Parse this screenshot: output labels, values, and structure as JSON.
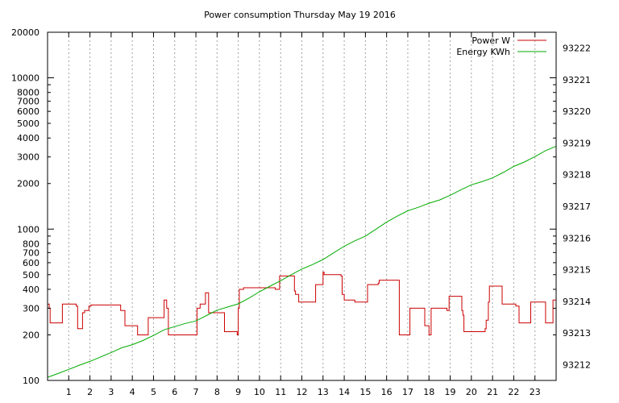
{
  "chart_data": {
    "type": "line",
    "title": "Power consumption Thursday May 19 2016",
    "xlabel": "",
    "ylabel": "",
    "y2label": "",
    "grid": true,
    "legend_position": "top-right",
    "x_ticks": [
      1,
      2,
      3,
      4,
      5,
      6,
      7,
      8,
      9,
      10,
      11,
      12,
      13,
      14,
      15,
      16,
      17,
      18,
      19,
      20,
      21,
      22,
      23
    ],
    "xlim": [
      0,
      24
    ],
    "y_scale": "log",
    "ylim": [
      100,
      20000
    ],
    "y_ticks": [
      {
        "value": 100,
        "label": "100"
      },
      {
        "value": 200,
        "label": "200"
      },
      {
        "value": 300,
        "label": "300"
      },
      {
        "value": 400,
        "label": "400"
      },
      {
        "value": 500,
        "label": "500"
      },
      {
        "value": 600,
        "label": "600"
      },
      {
        "value": 700,
        "label": "700"
      },
      {
        "value": 800,
        "label": "800"
      },
      {
        "value": 1000,
        "label": "1000"
      },
      {
        "value": 2000,
        "label": "2000"
      },
      {
        "value": 3000,
        "label": "3000"
      },
      {
        "value": 4000,
        "label": "4000"
      },
      {
        "value": 5000,
        "label": "5000"
      },
      {
        "value": 6000,
        "label": "6000"
      },
      {
        "value": 7000,
        "label": "7000"
      },
      {
        "value": 8000,
        "label": "8000"
      },
      {
        "value": 10000,
        "label": "10000"
      },
      {
        "value": 20000,
        "label": "20000"
      }
    ],
    "y2lim": [
      93211.5,
      93222.5
    ],
    "y2_ticks": [
      93212,
      93213,
      93214,
      93215,
      93216,
      93217,
      93218,
      93219,
      93220,
      93221,
      93222
    ],
    "series": [
      {
        "name": "Power W",
        "axis": "y",
        "color": "#cc0000",
        "step": true,
        "x": [
          0,
          0.08,
          0.12,
          0.65,
          0.7,
          1.35,
          1.42,
          1.65,
          1.75,
          1.95,
          2.05,
          3.35,
          3.45,
          3.65,
          3.75,
          4.25,
          4.4,
          4.75,
          4.85,
          5.5,
          5.55,
          5.62,
          5.7,
          6.35,
          6.9,
          7.05,
          7.15,
          7.2,
          7.45,
          7.6,
          8.3,
          8.35,
          8.9,
          8.95,
          9.0,
          9.05,
          9.25,
          9.85,
          10.3,
          10.75,
          10.95,
          11.55,
          11.65,
          11.7,
          11.85,
          12.6,
          12.65,
          12.95,
          13.0,
          13.05,
          13.2,
          13.85,
          13.9,
          14.0,
          14.35,
          14.5,
          14.6,
          15.0,
          15.1,
          15.6,
          15.65,
          16.55,
          16.6,
          16.95,
          17.0,
          17.1,
          17.65,
          17.8,
          17.95,
          18.0,
          18.05,
          18.1,
          18.8,
          18.85,
          18.95,
          19.0,
          19.5,
          19.55,
          19.6,
          19.65,
          20.0,
          20.15,
          20.55,
          20.65,
          20.7,
          20.8,
          20.85,
          21.0,
          21.35,
          21.45,
          22.0,
          22.05,
          22.1,
          22.25,
          22.45,
          22.8,
          22.95,
          23.4,
          23.5,
          23.7,
          23.85,
          24.0
        ],
        "values": [
          320,
          300,
          240,
          240,
          320,
          310,
          220,
          280,
          290,
          310,
          315,
          315,
          290,
          230,
          230,
          200,
          200,
          260,
          260,
          340,
          340,
          300,
          200,
          200,
          200,
          300,
          300,
          320,
          380,
          280,
          280,
          210,
          210,
          200,
          300,
          400,
          410,
          410,
          410,
          400,
          490,
          490,
          390,
          370,
          330,
          330,
          430,
          430,
          520,
          500,
          500,
          490,
          370,
          340,
          340,
          330,
          330,
          330,
          430,
          440,
          460,
          460,
          200,
          200,
          200,
          300,
          300,
          230,
          230,
          200,
          200,
          300,
          300,
          290,
          360,
          360,
          360,
          290,
          270,
          210,
          210,
          210,
          210,
          220,
          250,
          330,
          420,
          420,
          420,
          320,
          320,
          320,
          310,
          240,
          240,
          330,
          330,
          330,
          240,
          240,
          340,
          330
        ]
      },
      {
        "name": "Energy KWh",
        "axis": "y2",
        "color": "#00aa00",
        "step": false,
        "x": [
          0,
          0.5,
          1,
          1.5,
          2,
          2.5,
          3,
          3.5,
          4,
          4.5,
          5,
          5.5,
          6,
          6.5,
          7,
          7.5,
          8,
          8.5,
          9,
          9.5,
          10,
          10.5,
          11,
          11.5,
          12,
          12.5,
          13,
          13.5,
          14,
          14.5,
          15,
          15.5,
          16,
          16.5,
          17,
          17.5,
          18,
          18.5,
          19,
          19.5,
          20,
          20.5,
          21,
          21.5,
          22,
          22.5,
          23,
          23.5,
          24
        ],
        "values": [
          93211.6,
          93211.72,
          93211.85,
          93211.98,
          93212.1,
          93212.24,
          93212.38,
          93212.53,
          93212.63,
          93212.76,
          93212.92,
          93213.1,
          93213.2,
          93213.3,
          93213.38,
          93213.55,
          93213.72,
          93213.82,
          93213.92,
          93214.1,
          93214.3,
          93214.48,
          93214.65,
          93214.84,
          93215.02,
          93215.16,
          93215.32,
          93215.53,
          93215.74,
          93215.91,
          93216.06,
          93216.28,
          93216.5,
          93216.69,
          93216.86,
          93216.97,
          93217.1,
          93217.2,
          93217.35,
          93217.52,
          93217.68,
          93217.78,
          93217.9,
          93218.07,
          93218.26,
          93218.4,
          93218.57,
          93218.76,
          93218.9
        ]
      }
    ]
  }
}
